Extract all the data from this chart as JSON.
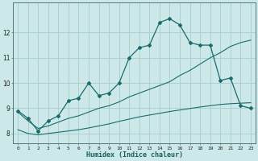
{
  "xlabel": "Humidex (Indice chaleur)",
  "ylabel": "",
  "bg_color": "#cce8e8",
  "grid_color": "#aacccc",
  "line_color": "#1a6b6b",
  "xlim": [
    -0.5,
    23.5
  ],
  "ylim": [
    7.6,
    13.2
  ],
  "x_ticks": [
    0,
    1,
    2,
    3,
    4,
    5,
    6,
    7,
    8,
    9,
    10,
    11,
    12,
    13,
    14,
    15,
    16,
    17,
    18,
    19,
    20,
    21,
    22,
    23
  ],
  "y_ticks": [
    8,
    9,
    10,
    11,
    12
  ],
  "curve1_x": [
    0,
    1,
    2,
    3,
    4,
    5,
    6,
    7,
    8,
    9,
    10,
    11,
    12,
    13,
    14,
    15,
    16,
    17,
    18,
    19,
    20,
    21,
    22,
    23
  ],
  "curve1_y": [
    8.9,
    8.6,
    8.1,
    8.5,
    8.7,
    9.3,
    9.4,
    10.0,
    9.5,
    9.6,
    10.0,
    11.0,
    11.4,
    11.5,
    12.4,
    12.55,
    12.3,
    11.6,
    11.5,
    11.5,
    10.1,
    10.2,
    9.1,
    9.0
  ],
  "curve2_x": [
    0,
    1,
    2,
    3,
    4,
    5,
    6,
    7,
    8,
    9,
    10,
    11,
    12,
    13,
    14,
    15,
    16,
    17,
    18,
    19,
    20,
    21,
    22,
    23
  ],
  "curve2_y": [
    8.85,
    8.5,
    8.2,
    8.3,
    8.45,
    8.6,
    8.7,
    8.85,
    9.0,
    9.1,
    9.25,
    9.45,
    9.6,
    9.75,
    9.9,
    10.05,
    10.3,
    10.5,
    10.75,
    11.0,
    11.2,
    11.45,
    11.6,
    11.7
  ],
  "curve3_x": [
    0,
    1,
    2,
    3,
    4,
    5,
    6,
    7,
    8,
    9,
    10,
    11,
    12,
    13,
    14,
    15,
    16,
    17,
    18,
    19,
    20,
    21,
    22,
    23
  ],
  "curve3_y": [
    8.15,
    8.0,
    7.95,
    8.0,
    8.05,
    8.1,
    8.15,
    8.22,
    8.3,
    8.38,
    8.48,
    8.57,
    8.66,
    8.73,
    8.8,
    8.87,
    8.93,
    8.99,
    9.05,
    9.1,
    9.15,
    9.18,
    9.2,
    9.22
  ]
}
